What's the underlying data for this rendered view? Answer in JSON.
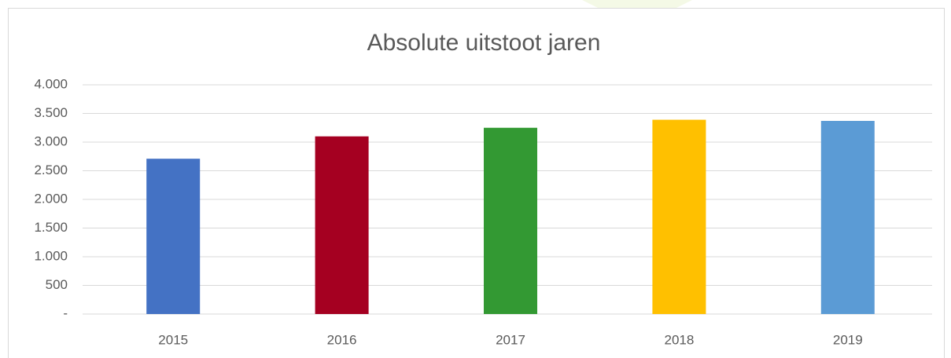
{
  "chart_data": {
    "type": "bar",
    "title": "Absolute uitstoot jaren",
    "categories": [
      "2015",
      "2016",
      "2017",
      "2018",
      "2019"
    ],
    "values": [
      2710,
      3100,
      3250,
      3390,
      3370
    ],
    "colors": [
      "#4472c4",
      "#a50021",
      "#339933",
      "#ffc000",
      "#5b9bd5"
    ],
    "ylim": [
      0,
      4000
    ],
    "yticks": [
      {
        "value": 0,
        "label": "-"
      },
      500,
      {
        "value": 1000,
        "label": "1.000"
      },
      {
        "value": 1500,
        "label": "1.500"
      },
      {
        "value": 2000,
        "label": "2.000"
      },
      {
        "value": 2500,
        "label": "2.500"
      },
      {
        "value": 3000,
        "label": "3.000"
      },
      {
        "value": 3500,
        "label": "3.500"
      },
      {
        "value": 4000,
        "label": "4.000"
      }
    ],
    "grid": true
  }
}
